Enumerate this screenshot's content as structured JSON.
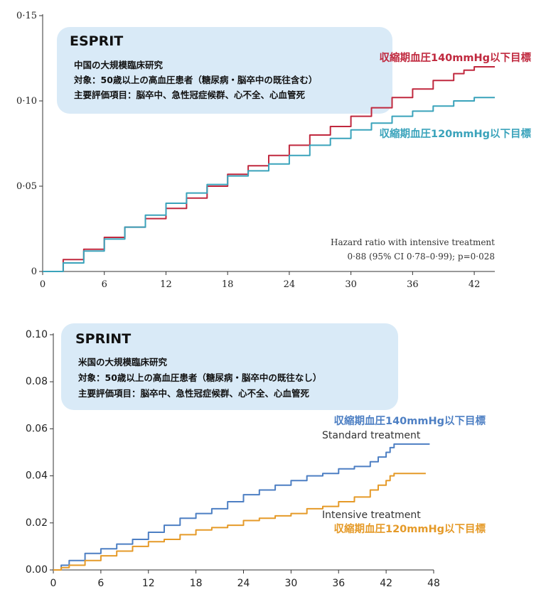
{
  "colors": {
    "esprit_standard": "#c0283e",
    "esprit_intensive": "#3aa3bb",
    "sprint_standard": "#4d7fc3",
    "sprint_intensive": "#e59a28",
    "box_fill": "#d9eaf7"
  },
  "chart_data": [
    {
      "type": "line",
      "step": true,
      "title": "ESPRIT",
      "info_lines": [
        "中国の大規模臨床研究",
        "対象：50歳以上の高血圧患者（糖尿病・脳卒中の既往含む）",
        "主要評価項目：脳卒中、急性冠症候群、心不全、心血管死"
      ],
      "xlim": [
        0,
        44
      ],
      "ylim": [
        0,
        0.15
      ],
      "x_ticks": [
        "0",
        "6",
        "12",
        "18",
        "24",
        "30",
        "36",
        "42"
      ],
      "y_ticks": [
        "0",
        "0·05",
        "0·10",
        "0·15"
      ],
      "series": [
        {
          "name": "収縮期血圧140mmHg以下目標",
          "color": "#c0283e",
          "x": [
            0,
            2,
            4,
            6,
            8,
            10,
            12,
            14,
            16,
            18,
            20,
            22,
            24,
            26,
            28,
            30,
            32,
            34,
            36,
            38,
            40,
            41,
            42,
            44
          ],
          "y": [
            0,
            0.007,
            0.013,
            0.02,
            0.026,
            0.031,
            0.037,
            0.043,
            0.05,
            0.057,
            0.062,
            0.068,
            0.074,
            0.08,
            0.085,
            0.091,
            0.096,
            0.102,
            0.107,
            0.112,
            0.116,
            0.118,
            0.12,
            0.12
          ]
        },
        {
          "name": "収縮期血圧120mmHg以下目標",
          "color": "#3aa3bb",
          "x": [
            0,
            2,
            4,
            6,
            8,
            10,
            12,
            14,
            16,
            18,
            20,
            22,
            24,
            26,
            28,
            30,
            32,
            34,
            36,
            38,
            40,
            42,
            44
          ],
          "y": [
            0,
            0.005,
            0.012,
            0.019,
            0.026,
            0.033,
            0.04,
            0.046,
            0.051,
            0.056,
            0.059,
            0.063,
            0.068,
            0.074,
            0.078,
            0.083,
            0.087,
            0.091,
            0.094,
            0.097,
            0.1,
            0.102,
            0.102
          ]
        }
      ],
      "annotation": [
        "Hazard ratio with intensive treatment",
        "0·88 (95% CI 0·78–0·99); p=0·028"
      ]
    },
    {
      "type": "line",
      "step": true,
      "title": "SPRINT",
      "info_lines": [
        "米国の大規模臨床研究",
        "対象：50歳以上の高血圧患者（糖尿病・脳卒中の既往なし）",
        "主要評価項目：脳卒中、急性冠症候群、心不全、心血管死"
      ],
      "xlim": [
        0,
        48
      ],
      "ylim": [
        0,
        0.1
      ],
      "x_ticks": [
        "0",
        "6",
        "12",
        "18",
        "24",
        "30",
        "36",
        "42",
        "48"
      ],
      "y_ticks": [
        "0.00",
        "0.02",
        "0.04",
        "0.06",
        "0.08",
        "0.10"
      ],
      "series": [
        {
          "name": "収縮期血圧140mmHg以下目標",
          "english_label": "Standard treatment",
          "color": "#4d7fc3",
          "x": [
            0,
            1,
            2,
            4,
            6,
            8,
            10,
            12,
            14,
            16,
            18,
            20,
            22,
            24,
            26,
            28,
            30,
            32,
            34,
            36,
            38,
            40,
            41,
            42,
            42.5,
            43,
            47.5
          ],
          "y": [
            0,
            0.002,
            0.004,
            0.007,
            0.009,
            0.011,
            0.013,
            0.016,
            0.019,
            0.022,
            0.024,
            0.026,
            0.029,
            0.032,
            0.034,
            0.036,
            0.038,
            0.04,
            0.041,
            0.043,
            0.044,
            0.046,
            0.048,
            0.05,
            0.052,
            0.0535,
            0.0535
          ]
        },
        {
          "name": "収縮期血圧120mmHg以下目標",
          "english_label": "Intensive treatment",
          "color": "#e59a28",
          "x": [
            0,
            1,
            2,
            4,
            6,
            8,
            10,
            12,
            14,
            16,
            18,
            20,
            22,
            24,
            26,
            28,
            30,
            32,
            34,
            36,
            38,
            40,
            41,
            42,
            42.5,
            43,
            47
          ],
          "y": [
            0,
            0.001,
            0.002,
            0.004,
            0.006,
            0.008,
            0.01,
            0.012,
            0.013,
            0.015,
            0.017,
            0.018,
            0.019,
            0.021,
            0.022,
            0.023,
            0.024,
            0.026,
            0.027,
            0.029,
            0.031,
            0.034,
            0.036,
            0.038,
            0.04,
            0.041,
            0.041
          ]
        }
      ]
    }
  ]
}
